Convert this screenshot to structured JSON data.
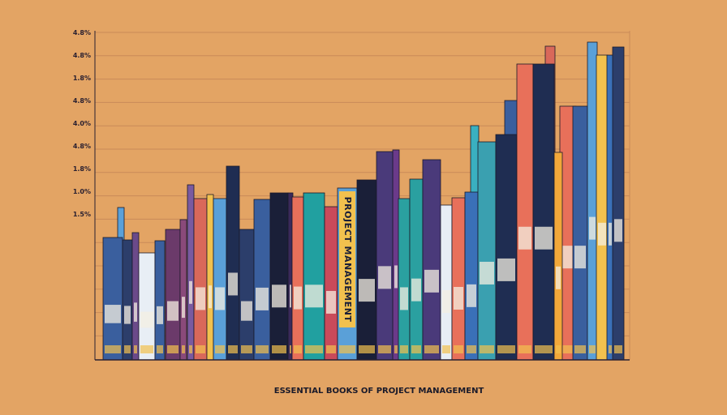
{
  "title": "ESSENTIAL BOOKS OF PROJECT MANAGEMENT",
  "spine_text": "PROJECT MANAGEMENT",
  "y_labels": [
    "4.8%",
    "4.8%",
    "1.8%",
    "4.8%",
    "4.0%",
    "4.8%",
    "1.8%",
    "1.0%",
    "1.5%"
  ]
}
